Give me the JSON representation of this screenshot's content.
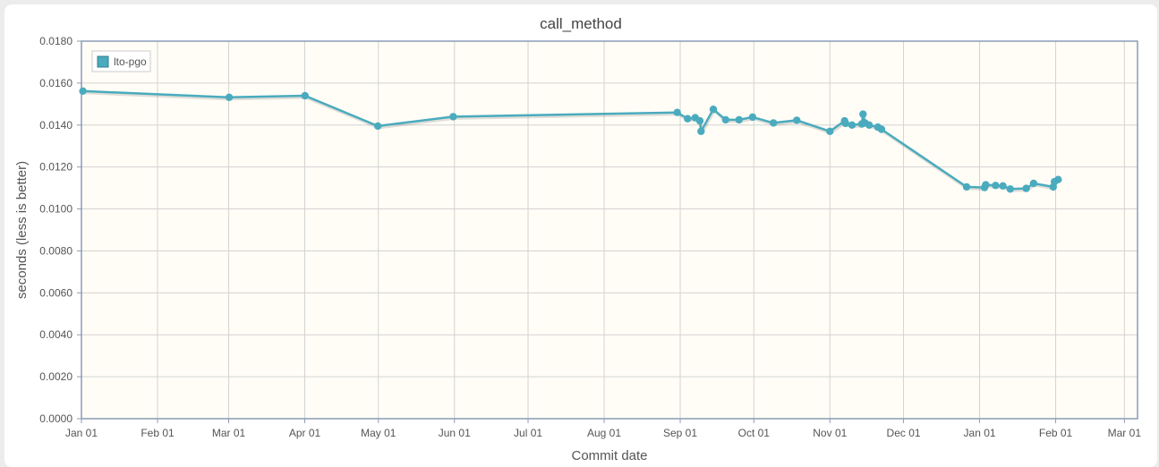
{
  "chart_data": {
    "type": "line",
    "title": "call_method",
    "xlabel": "Commit date",
    "ylabel": "seconds (less is better)",
    "xlim": [
      0,
      424
    ],
    "ylim": [
      0,
      0.018
    ],
    "x_ticks": [
      {
        "label": "Jan 01",
        "day": 0
      },
      {
        "label": "Feb 01",
        "day": 31
      },
      {
        "label": "Mar 01",
        "day": 60
      },
      {
        "label": "Apr 01",
        "day": 91
      },
      {
        "label": "May 01",
        "day": 121
      },
      {
        "label": "Jun 01",
        "day": 152
      },
      {
        "label": "Jul 01",
        "day": 182
      },
      {
        "label": "Aug 01",
        "day": 213
      },
      {
        "label": "Sep 01",
        "day": 244
      },
      {
        "label": "Oct 01",
        "day": 274
      },
      {
        "label": "Nov 01",
        "day": 305
      },
      {
        "label": "Dec 01",
        "day": 335
      },
      {
        "label": "Jan 01",
        "day": 366
      },
      {
        "label": "Feb 01",
        "day": 397
      },
      {
        "label": "Mar 01",
        "day": 425
      }
    ],
    "y_ticks": [
      "0.0000",
      "0.0020",
      "0.0040",
      "0.0060",
      "0.0080",
      "0.0100",
      "0.0120",
      "0.0140",
      "0.0160",
      "0.0180"
    ],
    "grid": true,
    "legend_position": "top-left",
    "series": [
      {
        "name": "lto-pgo",
        "color": "#4aabbe",
        "points": [
          {
            "x": 0.6,
            "y": 0.01562
          },
          {
            "x": 60.2,
            "y": 0.01532
          },
          {
            "x": 91.1,
            "y": 0.0154
          },
          {
            "x": 120.8,
            "y": 0.01395
          },
          {
            "x": 151.5,
            "y": 0.0144
          },
          {
            "x": 242.8,
            "y": 0.0146
          },
          {
            "x": 247.0,
            "y": 0.0143
          },
          {
            "x": 250.1,
            "y": 0.01435
          },
          {
            "x": 252.0,
            "y": 0.0142
          },
          {
            "x": 252.5,
            "y": 0.0137
          },
          {
            "x": 257.5,
            "y": 0.01475
          },
          {
            "x": 262.5,
            "y": 0.01425
          },
          {
            "x": 268.0,
            "y": 0.01425
          },
          {
            "x": 273.5,
            "y": 0.01438
          },
          {
            "x": 282.0,
            "y": 0.0141
          },
          {
            "x": 291.5,
            "y": 0.01423
          },
          {
            "x": 305.0,
            "y": 0.0137
          },
          {
            "x": 311.0,
            "y": 0.0142
          },
          {
            "x": 311.4,
            "y": 0.01408
          },
          {
            "x": 314.0,
            "y": 0.014
          },
          {
            "x": 318.0,
            "y": 0.01405
          },
          {
            "x": 318.5,
            "y": 0.01452
          },
          {
            "x": 319.3,
            "y": 0.0141
          },
          {
            "x": 321.0,
            "y": 0.014
          },
          {
            "x": 324.5,
            "y": 0.0139
          },
          {
            "x": 326.0,
            "y": 0.0138
          },
          {
            "x": 360.7,
            "y": 0.01105
          },
          {
            "x": 368.0,
            "y": 0.01102
          },
          {
            "x": 368.5,
            "y": 0.01115
          },
          {
            "x": 372.5,
            "y": 0.01112
          },
          {
            "x": 375.5,
            "y": 0.0111
          },
          {
            "x": 378.5,
            "y": 0.01095
          },
          {
            "x": 385.0,
            "y": 0.01098
          },
          {
            "x": 388.0,
            "y": 0.01122
          },
          {
            "x": 396.0,
            "y": 0.01105
          },
          {
            "x": 396.5,
            "y": 0.0113
          },
          {
            "x": 398.0,
            "y": 0.0114
          }
        ]
      }
    ]
  }
}
